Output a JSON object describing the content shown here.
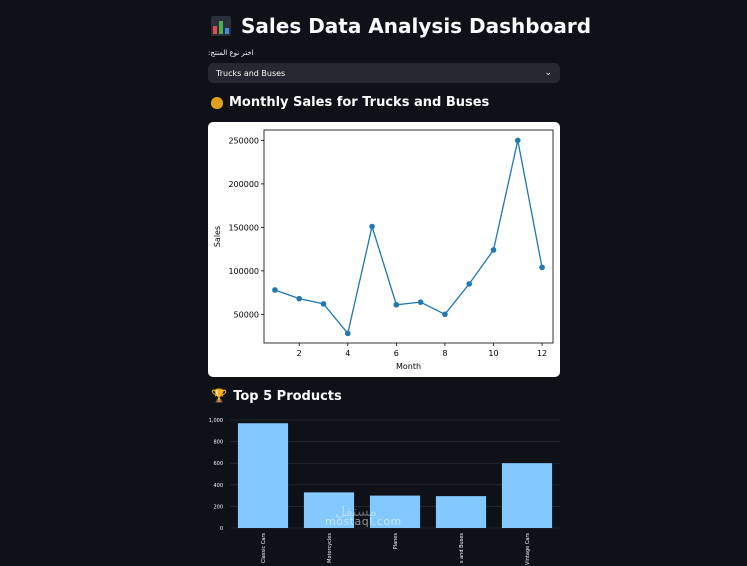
{
  "header": {
    "title": "Sales Data Analysis Dashboard",
    "icon": "bar-chart-icon"
  },
  "filter": {
    "label": "اختر نوع المنتج:",
    "selected": "Trucks and Buses"
  },
  "line_section": {
    "heading": "Monthly Sales for Trucks and Buses",
    "icon": "money-bag-icon"
  },
  "bar_section": {
    "heading": "Top 5 Products",
    "icon": "trophy-icon"
  },
  "watermark": {
    "arabic": "مستقل",
    "latin": "mostaql.com"
  },
  "colors": {
    "line": "#1f77b4",
    "bar": "#83c9ff",
    "bg": "#0e1117"
  },
  "chart_data": [
    {
      "type": "line",
      "title": "",
      "xlabel": "Month",
      "ylabel": "Sales",
      "x": [
        1,
        2,
        3,
        4,
        5,
        6,
        7,
        8,
        9,
        10,
        11,
        12
      ],
      "values": [
        78000,
        68000,
        62000,
        28000,
        151000,
        61000,
        64000,
        50000,
        85000,
        124000,
        250000,
        104000
      ],
      "xlim": [
        0.55,
        12.45
      ],
      "ylim": [
        17000,
        262000
      ],
      "xticks": [
        2,
        4,
        6,
        8,
        10,
        12
      ],
      "yticks": [
        50000,
        100000,
        150000,
        200000,
        250000
      ],
      "grid": false
    },
    {
      "type": "bar",
      "title": "",
      "categories": [
        "Classic Cars",
        "Motorcycles",
        "Planes",
        "Trucks and Buses",
        "Vintage Cars"
      ],
      "category_labels": [
        "Classic Cars",
        "Motorcycles",
        "Planes",
        "s and Buses",
        "Vintage Cars"
      ],
      "values": [
        970,
        330,
        300,
        295,
        600
      ],
      "ylim": [
        0,
        1000
      ],
      "yticks": [
        0,
        200,
        400,
        600,
        800,
        1000
      ],
      "ytick_labels": [
        "0",
        "200",
        "400",
        "600",
        "800",
        "1,000"
      ],
      "grid": true
    }
  ]
}
